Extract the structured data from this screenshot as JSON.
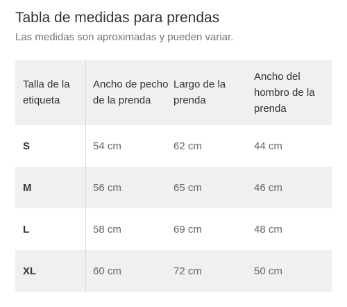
{
  "header": {
    "title": "Tabla de medidas para prendas",
    "subtitle": "Las medidas son aproximadas y pueden variar."
  },
  "table": {
    "columns": [
      "Talla de la etiqueta",
      "Ancho de pecho de la prenda",
      "Largo de la prenda",
      "Ancho del hombro de la prenda"
    ],
    "rows": [
      {
        "size": "S",
        "chest": "54 cm",
        "length": "62 cm",
        "shoulder": "44 cm"
      },
      {
        "size": "M",
        "chest": "56 cm",
        "length": "65 cm",
        "shoulder": "46 cm"
      },
      {
        "size": "L",
        "chest": "58 cm",
        "length": "69 cm",
        "shoulder": "48 cm"
      },
      {
        "size": "XL",
        "chest": "60 cm",
        "length": "72 cm",
        "shoulder": "50 cm"
      }
    ]
  },
  "colors": {
    "shaded_row": "#f0f0f0",
    "title_text": "#333333",
    "subtitle_text": "#757575",
    "value_text": "#666666"
  }
}
